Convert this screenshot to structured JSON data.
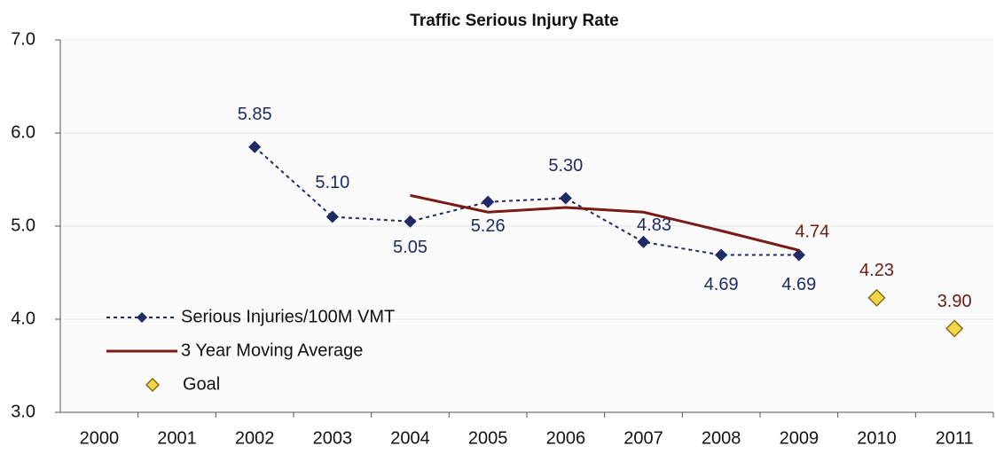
{
  "chart_data": {
    "type": "line",
    "title": "Traffic Serious Injury Rate",
    "categories": [
      "2000",
      "2001",
      "2002",
      "2003",
      "2004",
      "2005",
      "2006",
      "2007",
      "2008",
      "2009",
      "2010",
      "2011"
    ],
    "ylim": [
      3,
      7
    ],
    "yticks": [
      {
        "value": 3,
        "label": "3.0"
      },
      {
        "value": 4,
        "label": "4.0"
      },
      {
        "value": 5,
        "label": "5.0"
      },
      {
        "value": 6,
        "label": "6.0"
      },
      {
        "value": 7,
        "label": "7.0"
      }
    ],
    "grid": true,
    "legend": "lower left",
    "series": [
      {
        "name": "Serious Injuries/100M VMT",
        "color": "#1f2a66",
        "style": "dotted-diamond",
        "values": [
          null,
          null,
          5.85,
          5.1,
          5.05,
          5.26,
          5.3,
          4.83,
          4.69,
          4.69,
          null,
          null
        ],
        "value_labels": [
          null,
          null,
          "5.85",
          "5.10",
          "5.05",
          "5.26",
          "5.30",
          "4.83",
          "4.69",
          "4.69",
          null,
          null
        ]
      },
      {
        "name": "3 Year Moving Average",
        "color": "#7a1a14",
        "style": "solid",
        "values": [
          null,
          null,
          null,
          null,
          5.33,
          5.15,
          5.2,
          5.15,
          4.95,
          4.74,
          null,
          null
        ],
        "value_labels": [
          null,
          null,
          null,
          null,
          null,
          null,
          null,
          null,
          null,
          "4.74",
          null,
          null
        ]
      },
      {
        "name": "Goal",
        "color": "#f2d64b",
        "style": "marker-diamond",
        "values": [
          null,
          null,
          null,
          null,
          null,
          null,
          null,
          null,
          null,
          null,
          4.23,
          3.9
        ],
        "value_labels": [
          null,
          null,
          null,
          null,
          null,
          null,
          null,
          null,
          null,
          null,
          "4.23",
          "3.90"
        ]
      }
    ]
  }
}
